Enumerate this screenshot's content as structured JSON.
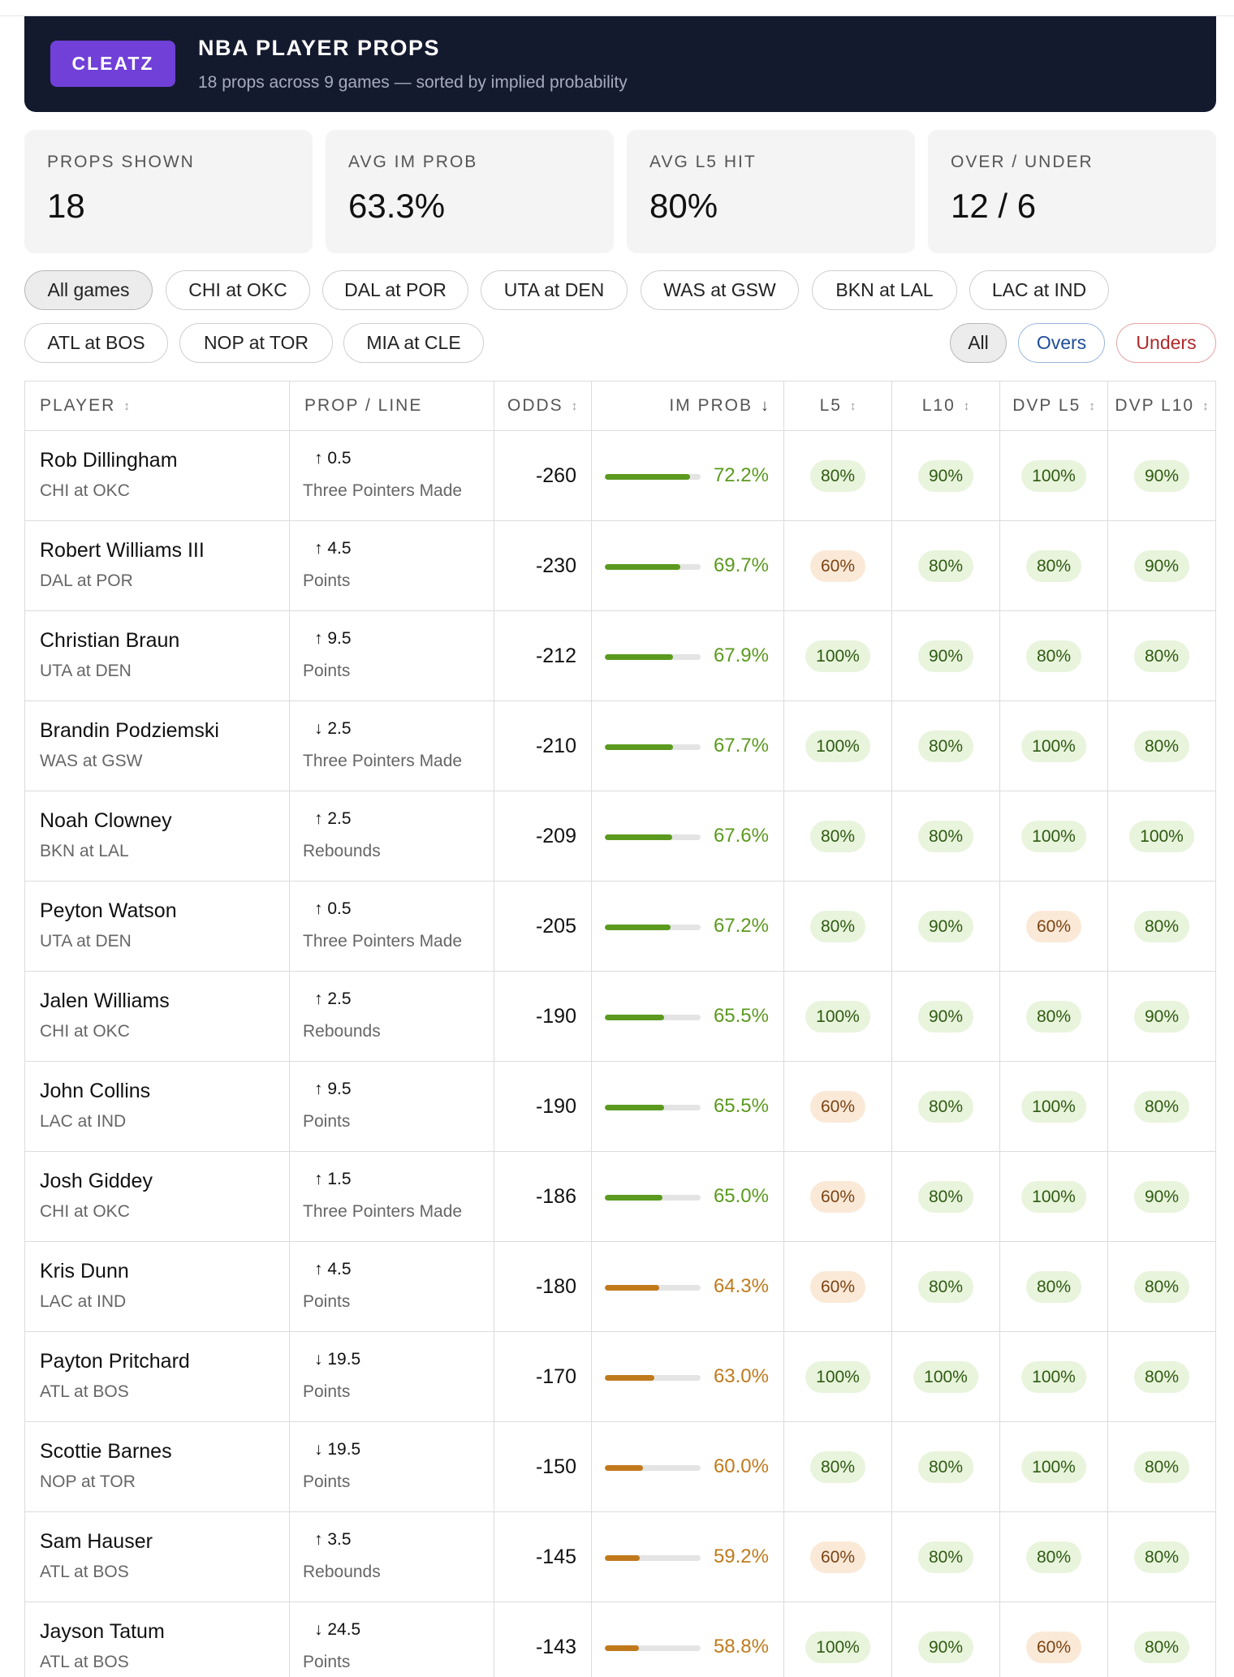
{
  "header": {
    "logo": "CLEATZ",
    "title": "NBA PLAYER PROPS",
    "subtitle": "18 props across 9 games — sorted by implied probability"
  },
  "stats": [
    {
      "label": "PROPS SHOWN",
      "value": "18"
    },
    {
      "label": "AVG IM PROB",
      "value": "63.3%"
    },
    {
      "label": "AVG L5 HIT",
      "value": "80%"
    },
    {
      "label": "OVER / UNDER",
      "value": "12 / 6"
    }
  ],
  "game_filters": [
    "All games",
    "CHI at OKC",
    "DAL at POR",
    "UTA at DEN",
    "WAS at GSW",
    "BKN at LAL",
    "LAC at IND",
    "ATL at BOS",
    "NOP at TOR",
    "MIA at CLE"
  ],
  "side_filters": [
    "All",
    "Overs",
    "Unders"
  ],
  "colors": {
    "accent": "#7040d8",
    "header_bg": "#141a2e",
    "high": "#5b9a1e",
    "mid": "#c07a1c",
    "badge_green_bg": "#e8f4dc",
    "badge_green_text": "#2f5a12",
    "badge_orange_bg": "#fbe9d8",
    "badge_orange_text": "#7a4412"
  },
  "table": {
    "columns": [
      "PLAYER",
      "PROP / LINE",
      "ODDS",
      "IM PROB",
      "L5",
      "L10",
      "DVP L5",
      "DVP L10"
    ],
    "sort_glyph": "↕",
    "active_sort_glyph": "↓",
    "rows": [
      {
        "player": "Rob Dillingham",
        "game": "CHI at OKC",
        "dir": "↑",
        "line": "0.5",
        "stat": "Three Pointers Made",
        "odds": "-260",
        "prob": 72.2,
        "prob_text": "72.2%",
        "l5": "80%",
        "l10": "90%",
        "dvp5": "100%",
        "dvp10": "90%"
      },
      {
        "player": "Robert Williams III",
        "game": "DAL at POR",
        "dir": "↑",
        "line": "4.5",
        "stat": "Points",
        "odds": "-230",
        "prob": 69.7,
        "prob_text": "69.7%",
        "l5": "60%",
        "l10": "80%",
        "dvp5": "80%",
        "dvp10": "90%"
      },
      {
        "player": "Christian Braun",
        "game": "UTA at DEN",
        "dir": "↑",
        "line": "9.5",
        "stat": "Points",
        "odds": "-212",
        "prob": 67.9,
        "prob_text": "67.9%",
        "l5": "100%",
        "l10": "90%",
        "dvp5": "80%",
        "dvp10": "80%"
      },
      {
        "player": "Brandin Podziemski",
        "game": "WAS at GSW",
        "dir": "↓",
        "line": "2.5",
        "stat": "Three Pointers Made",
        "odds": "-210",
        "prob": 67.7,
        "prob_text": "67.7%",
        "l5": "100%",
        "l10": "80%",
        "dvp5": "100%",
        "dvp10": "80%"
      },
      {
        "player": "Noah Clowney",
        "game": "BKN at LAL",
        "dir": "↑",
        "line": "2.5",
        "stat": "Rebounds",
        "odds": "-209",
        "prob": 67.6,
        "prob_text": "67.6%",
        "l5": "80%",
        "l10": "80%",
        "dvp5": "100%",
        "dvp10": "100%"
      },
      {
        "player": "Peyton Watson",
        "game": "UTA at DEN",
        "dir": "↑",
        "line": "0.5",
        "stat": "Three Pointers Made",
        "odds": "-205",
        "prob": 67.2,
        "prob_text": "67.2%",
        "l5": "80%",
        "l10": "90%",
        "dvp5": "60%",
        "dvp10": "80%"
      },
      {
        "player": "Jalen Williams",
        "game": "CHI at OKC",
        "dir": "↑",
        "line": "2.5",
        "stat": "Rebounds",
        "odds": "-190",
        "prob": 65.5,
        "prob_text": "65.5%",
        "l5": "100%",
        "l10": "90%",
        "dvp5": "80%",
        "dvp10": "90%"
      },
      {
        "player": "John Collins",
        "game": "LAC at IND",
        "dir": "↑",
        "line": "9.5",
        "stat": "Points",
        "odds": "-190",
        "prob": 65.5,
        "prob_text": "65.5%",
        "l5": "60%",
        "l10": "80%",
        "dvp5": "100%",
        "dvp10": "80%"
      },
      {
        "player": "Josh Giddey",
        "game": "CHI at OKC",
        "dir": "↑",
        "line": "1.5",
        "stat": "Three Pointers Made",
        "odds": "-186",
        "prob": 65.0,
        "prob_text": "65.0%",
        "l5": "60%",
        "l10": "80%",
        "dvp5": "100%",
        "dvp10": "90%"
      },
      {
        "player": "Kris Dunn",
        "game": "LAC at IND",
        "dir": "↑",
        "line": "4.5",
        "stat": "Points",
        "odds": "-180",
        "prob": 64.3,
        "prob_text": "64.3%",
        "l5": "60%",
        "l10": "80%",
        "dvp5": "80%",
        "dvp10": "80%"
      },
      {
        "player": "Payton Pritchard",
        "game": "ATL at BOS",
        "dir": "↓",
        "line": "19.5",
        "stat": "Points",
        "odds": "-170",
        "prob": 63.0,
        "prob_text": "63.0%",
        "l5": "100%",
        "l10": "100%",
        "dvp5": "100%",
        "dvp10": "80%"
      },
      {
        "player": "Scottie Barnes",
        "game": "NOP at TOR",
        "dir": "↓",
        "line": "19.5",
        "stat": "Points",
        "odds": "-150",
        "prob": 60.0,
        "prob_text": "60.0%",
        "l5": "80%",
        "l10": "80%",
        "dvp5": "100%",
        "dvp10": "80%"
      },
      {
        "player": "Sam Hauser",
        "game": "ATL at BOS",
        "dir": "↑",
        "line": "3.5",
        "stat": "Rebounds",
        "odds": "-145",
        "prob": 59.2,
        "prob_text": "59.2%",
        "l5": "60%",
        "l10": "80%",
        "dvp5": "80%",
        "dvp10": "80%"
      },
      {
        "player": "Jayson Tatum",
        "game": "ATL at BOS",
        "dir": "↓",
        "line": "24.5",
        "stat": "Points",
        "odds": "-143",
        "prob": 58.8,
        "prob_text": "58.8%",
        "l5": "100%",
        "l10": "90%",
        "dvp5": "60%",
        "dvp10": "80%"
      }
    ]
  }
}
